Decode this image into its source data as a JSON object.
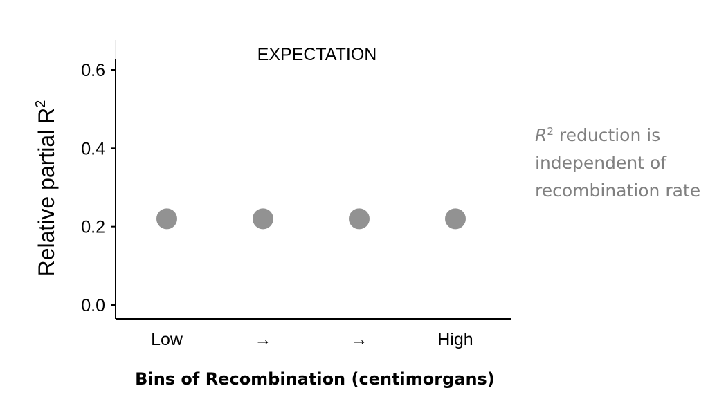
{
  "chart_data": {
    "type": "scatter",
    "title": "EXPECTATION",
    "ylabel": "Relative partial R",
    "ylabel_superscript": "2",
    "xlabel": "Bins of Recombination (centimorgans)",
    "categories": [
      "Low",
      "→",
      "→",
      "High"
    ],
    "values": [
      0.22,
      0.22,
      0.22,
      0.22
    ],
    "ylim": [
      0,
      0.6
    ],
    "yticks": [
      "0.0",
      "0.2",
      "0.4",
      "0.6"
    ],
    "grid": false,
    "legend": "none",
    "point_color": "#929292"
  },
  "annotation": {
    "variable": "R",
    "superscript": "2",
    "line1_rest": " reduction is",
    "line2": "independent of",
    "line3": "recombination rate"
  }
}
